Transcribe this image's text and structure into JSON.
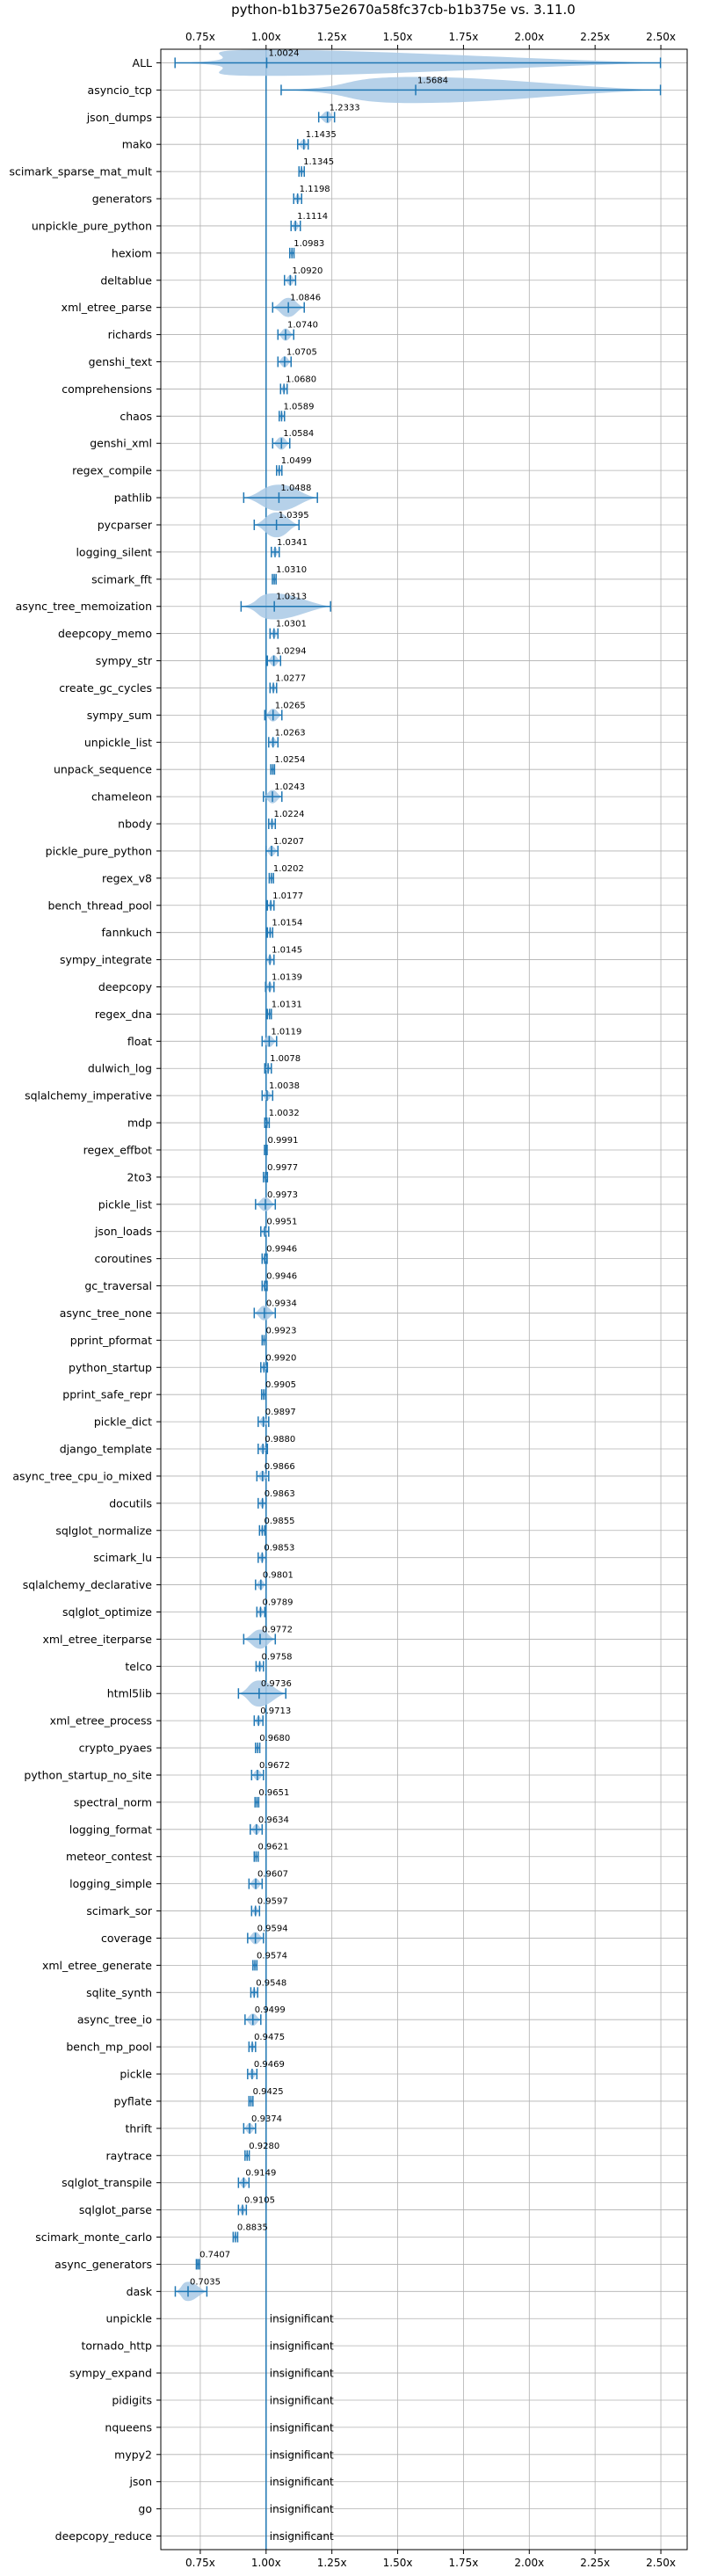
{
  "chart_data": {
    "type": "violin",
    "title": "python-b1b375e2670a58fc37cb-b1b375e vs. 3.11.0",
    "xlabel": "",
    "ylabel": "",
    "xlim": [
      0.6,
      2.6
    ],
    "xticks": [
      0.75,
      1.0,
      1.25,
      1.5,
      1.75,
      2.0,
      2.25,
      2.5
    ],
    "xtick_labels": [
      "0.75x",
      "1.00x",
      "1.25x",
      "1.50x",
      "1.75x",
      "2.00x",
      "2.25x",
      "2.50x"
    ],
    "reference_line": 1.0,
    "grid": true,
    "colors": {
      "line": "#1f77b4",
      "fill": "#a9c9e5",
      "grid": "#b0b0b0",
      "axis": "#000000"
    },
    "benchmarks": [
      {
        "name": "ALL",
        "value": 1.0024,
        "label": "1.0024",
        "min": 0.6541,
        "max": 2.4985
      },
      {
        "name": "asyncio_tcp",
        "value": 1.5684,
        "label": "1.5684",
        "min": 1.0573,
        "max": 2.4985
      },
      {
        "name": "json_dumps",
        "value": 1.2333,
        "label": "1.2333",
        "min": 1.2,
        "max": 1.26
      },
      {
        "name": "mako",
        "value": 1.1435,
        "label": "1.1435",
        "min": 1.12,
        "max": 1.16
      },
      {
        "name": "scimark_sparse_mat_mult",
        "value": 1.1345,
        "label": "1.1345",
        "min": 1.125,
        "max": 1.145
      },
      {
        "name": "generators",
        "value": 1.1198,
        "label": "1.1198",
        "min": 1.105,
        "max": 1.135
      },
      {
        "name": "unpickle_pure_python",
        "value": 1.1114,
        "label": "1.1114",
        "min": 1.095,
        "max": 1.13
      },
      {
        "name": "hexiom",
        "value": 1.0983,
        "label": "1.0983",
        "min": 1.09,
        "max": 1.106
      },
      {
        "name": "deltablue",
        "value": 1.092,
        "label": "1.0920",
        "min": 1.07,
        "max": 1.112
      },
      {
        "name": "xml_etree_parse",
        "value": 1.0846,
        "label": "1.0846",
        "min": 1.025,
        "max": 1.145
      },
      {
        "name": "richards",
        "value": 1.074,
        "label": "1.0740",
        "min": 1.045,
        "max": 1.105
      },
      {
        "name": "genshi_text",
        "value": 1.0705,
        "label": "1.0705",
        "min": 1.045,
        "max": 1.095
      },
      {
        "name": "comprehensions",
        "value": 1.068,
        "label": "1.0680",
        "min": 1.055,
        "max": 1.08
      },
      {
        "name": "chaos",
        "value": 1.0589,
        "label": "1.0589",
        "min": 1.05,
        "max": 1.07
      },
      {
        "name": "genshi_xml",
        "value": 1.0584,
        "label": "1.0584",
        "min": 1.025,
        "max": 1.09
      },
      {
        "name": "regex_compile",
        "value": 1.0499,
        "label": "1.0499",
        "min": 1.04,
        "max": 1.06
      },
      {
        "name": "pathlib",
        "value": 1.0488,
        "label": "1.0488",
        "min": 0.915,
        "max": 1.195
      },
      {
        "name": "pycparser",
        "value": 1.0395,
        "label": "1.0395",
        "min": 0.955,
        "max": 1.125
      },
      {
        "name": "logging_silent",
        "value": 1.0341,
        "label": "1.0341",
        "min": 1.02,
        "max": 1.05
      },
      {
        "name": "scimark_fft",
        "value": 1.031,
        "label": "1.0310",
        "min": 1.024,
        "max": 1.038
      },
      {
        "name": "async_tree_memoization",
        "value": 1.0313,
        "label": "1.0313",
        "min": 0.905,
        "max": 1.245
      },
      {
        "name": "deepcopy_memo",
        "value": 1.0301,
        "label": "1.0301",
        "min": 1.015,
        "max": 1.045
      },
      {
        "name": "sympy_str",
        "value": 1.0294,
        "label": "1.0294",
        "min": 1.005,
        "max": 1.055
      },
      {
        "name": "create_gc_cycles",
        "value": 1.0277,
        "label": "1.0277",
        "min": 1.015,
        "max": 1.04
      },
      {
        "name": "sympy_sum",
        "value": 1.0265,
        "label": "1.0265",
        "min": 0.995,
        "max": 1.06
      },
      {
        "name": "unpickle_list",
        "value": 1.0263,
        "label": "1.0263",
        "min": 1.01,
        "max": 1.045
      },
      {
        "name": "unpack_sequence",
        "value": 1.0254,
        "label": "1.0254",
        "min": 1.018,
        "max": 1.032
      },
      {
        "name": "chameleon",
        "value": 1.0243,
        "label": "1.0243",
        "min": 0.99,
        "max": 1.06
      },
      {
        "name": "nbody",
        "value": 1.0224,
        "label": "1.0224",
        "min": 1.01,
        "max": 1.035
      },
      {
        "name": "pickle_pure_python",
        "value": 1.0207,
        "label": "1.0207",
        "min": 1.0,
        "max": 1.045
      },
      {
        "name": "regex_v8",
        "value": 1.0202,
        "label": "1.0202",
        "min": 1.012,
        "max": 1.028
      },
      {
        "name": "bench_thread_pool",
        "value": 1.0177,
        "label": "1.0177",
        "min": 1.005,
        "max": 1.03
      },
      {
        "name": "fannkuch",
        "value": 1.0154,
        "label": "1.0154",
        "min": 1.005,
        "max": 1.025
      },
      {
        "name": "sympy_integrate",
        "value": 1.0145,
        "label": "1.0145",
        "min": 1.0,
        "max": 1.03
      },
      {
        "name": "deepcopy",
        "value": 1.0139,
        "label": "1.0139",
        "min": 0.998,
        "max": 1.03
      },
      {
        "name": "regex_dna",
        "value": 1.0131,
        "label": "1.0131",
        "min": 1.005,
        "max": 1.02
      },
      {
        "name": "float",
        "value": 1.0119,
        "label": "1.0119",
        "min": 0.985,
        "max": 1.04
      },
      {
        "name": "dulwich_log",
        "value": 1.0078,
        "label": "1.0078",
        "min": 0.995,
        "max": 1.02
      },
      {
        "name": "sqlalchemy_imperative",
        "value": 1.0038,
        "label": "1.0038",
        "min": 0.985,
        "max": 1.025
      },
      {
        "name": "mdp",
        "value": 1.0032,
        "label": "1.0032",
        "min": 0.995,
        "max": 1.012
      },
      {
        "name": "regex_effbot",
        "value": 0.9991,
        "label": "0.9991",
        "min": 0.994,
        "max": 1.004
      },
      {
        "name": "2to3",
        "value": 0.9977,
        "label": "0.9977",
        "min": 0.99,
        "max": 1.005
      },
      {
        "name": "pickle_list",
        "value": 0.9973,
        "label": "0.9973",
        "min": 0.96,
        "max": 1.035
      },
      {
        "name": "json_loads",
        "value": 0.9951,
        "label": "0.9951",
        "min": 0.98,
        "max": 1.01
      },
      {
        "name": "coroutines",
        "value": 0.9946,
        "label": "0.9946",
        "min": 0.985,
        "max": 1.004
      },
      {
        "name": "gc_traversal",
        "value": 0.9946,
        "label": "0.9946",
        "min": 0.985,
        "max": 1.004
      },
      {
        "name": "async_tree_none",
        "value": 0.9934,
        "label": "0.9934",
        "min": 0.955,
        "max": 1.035
      },
      {
        "name": "pprint_pformat",
        "value": 0.9923,
        "label": "0.9923",
        "min": 0.985,
        "max": 1.0
      },
      {
        "name": "python_startup",
        "value": 0.992,
        "label": "0.9920",
        "min": 0.98,
        "max": 1.005
      },
      {
        "name": "pprint_safe_repr",
        "value": 0.9905,
        "label": "0.9905",
        "min": 0.983,
        "max": 0.998
      },
      {
        "name": "pickle_dict",
        "value": 0.9897,
        "label": "0.9897",
        "min": 0.97,
        "max": 1.01
      },
      {
        "name": "django_template",
        "value": 0.988,
        "label": "0.9880",
        "min": 0.97,
        "max": 1.005
      },
      {
        "name": "async_tree_cpu_io_mixed",
        "value": 0.9866,
        "label": "0.9866",
        "min": 0.965,
        "max": 1.01
      },
      {
        "name": "docutils",
        "value": 0.9863,
        "label": "0.9863",
        "min": 0.97,
        "max": 1.0
      },
      {
        "name": "sqlglot_normalize",
        "value": 0.9855,
        "label": "0.9855",
        "min": 0.975,
        "max": 0.995
      },
      {
        "name": "scimark_lu",
        "value": 0.9853,
        "label": "0.9853",
        "min": 0.97,
        "max": 1.0
      },
      {
        "name": "sqlalchemy_declarative",
        "value": 0.9801,
        "label": "0.9801",
        "min": 0.96,
        "max": 1.0
      },
      {
        "name": "sqlglot_optimize",
        "value": 0.9789,
        "label": "0.9789",
        "min": 0.965,
        "max": 0.995
      },
      {
        "name": "xml_etree_iterparse",
        "value": 0.9772,
        "label": "0.9772",
        "min": 0.915,
        "max": 1.035
      },
      {
        "name": "telco",
        "value": 0.9758,
        "label": "0.9758",
        "min": 0.962,
        "max": 0.99
      },
      {
        "name": "html5lib",
        "value": 0.9736,
        "label": "0.9736",
        "min": 0.895,
        "max": 1.075
      },
      {
        "name": "xml_etree_process",
        "value": 0.9713,
        "label": "0.9713",
        "min": 0.955,
        "max": 0.988
      },
      {
        "name": "crypto_pyaes",
        "value": 0.968,
        "label": "0.9680",
        "min": 0.96,
        "max": 0.976
      },
      {
        "name": "python_startup_no_site",
        "value": 0.9672,
        "label": "0.9672",
        "min": 0.945,
        "max": 0.99
      },
      {
        "name": "spectral_norm",
        "value": 0.9651,
        "label": "0.9651",
        "min": 0.958,
        "max": 0.972
      },
      {
        "name": "logging_format",
        "value": 0.9634,
        "label": "0.9634",
        "min": 0.94,
        "max": 0.985
      },
      {
        "name": "meteor_contest",
        "value": 0.9621,
        "label": "0.9621",
        "min": 0.955,
        "max": 0.97
      },
      {
        "name": "logging_simple",
        "value": 0.9607,
        "label": "0.9607",
        "min": 0.935,
        "max": 0.985
      },
      {
        "name": "scimark_sor",
        "value": 0.9597,
        "label": "0.9597",
        "min": 0.945,
        "max": 0.975
      },
      {
        "name": "coverage",
        "value": 0.9594,
        "label": "0.9594",
        "min": 0.93,
        "max": 0.99
      },
      {
        "name": "xml_etree_generate",
        "value": 0.9574,
        "label": "0.9574",
        "min": 0.95,
        "max": 0.965
      },
      {
        "name": "sqlite_synth",
        "value": 0.9548,
        "label": "0.9548",
        "min": 0.942,
        "max": 0.968
      },
      {
        "name": "async_tree_io",
        "value": 0.9499,
        "label": "0.9499",
        "min": 0.92,
        "max": 0.98
      },
      {
        "name": "bench_mp_pool",
        "value": 0.9475,
        "label": "0.9475",
        "min": 0.935,
        "max": 0.96
      },
      {
        "name": "pickle",
        "value": 0.9469,
        "label": "0.9469",
        "min": 0.93,
        "max": 0.965
      },
      {
        "name": "pyflate",
        "value": 0.9425,
        "label": "0.9425",
        "min": 0.935,
        "max": 0.95
      },
      {
        "name": "thrift",
        "value": 0.9374,
        "label": "0.9374",
        "min": 0.915,
        "max": 0.96
      },
      {
        "name": "raytrace",
        "value": 0.928,
        "label": "0.9280",
        "min": 0.92,
        "max": 0.936
      },
      {
        "name": "sqlglot_transpile",
        "value": 0.9149,
        "label": "0.9149",
        "min": 0.895,
        "max": 0.935
      },
      {
        "name": "sqlglot_parse",
        "value": 0.9105,
        "label": "0.9105",
        "min": 0.895,
        "max": 0.925
      },
      {
        "name": "scimark_monte_carlo",
        "value": 0.8835,
        "label": "0.8835",
        "min": 0.875,
        "max": 0.892
      },
      {
        "name": "async_generators",
        "value": 0.7407,
        "label": "0.7407",
        "min": 0.735,
        "max": 0.747
      },
      {
        "name": "dask",
        "value": 0.7035,
        "label": "0.7035",
        "min": 0.655,
        "max": 0.775
      },
      {
        "name": "unpickle",
        "value": null,
        "label": "insignificant"
      },
      {
        "name": "tornado_http",
        "value": null,
        "label": "insignificant"
      },
      {
        "name": "sympy_expand",
        "value": null,
        "label": "insignificant"
      },
      {
        "name": "pidigits",
        "value": null,
        "label": "insignificant"
      },
      {
        "name": "nqueens",
        "value": null,
        "label": "insignificant"
      },
      {
        "name": "mypy2",
        "value": null,
        "label": "insignificant"
      },
      {
        "name": "json",
        "value": null,
        "label": "insignificant"
      },
      {
        "name": "go",
        "value": null,
        "label": "insignificant"
      },
      {
        "name": "deepcopy_reduce",
        "value": null,
        "label": "insignificant"
      }
    ]
  }
}
